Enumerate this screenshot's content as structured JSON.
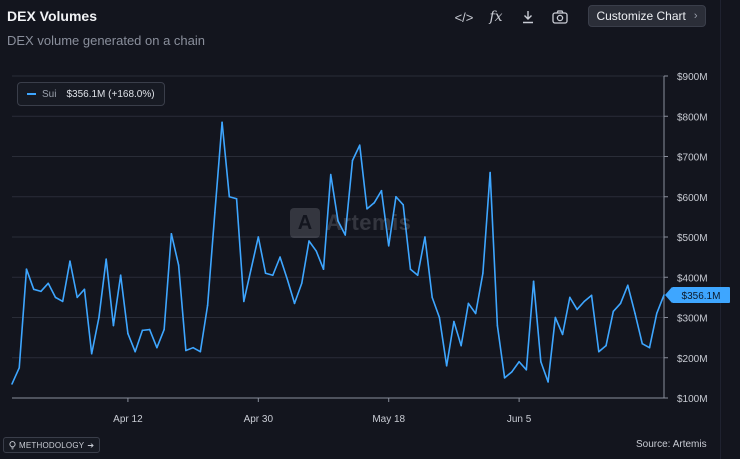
{
  "header": {
    "title": "DEX Volumes",
    "subtitle": "DEX volume generated on a chain",
    "customize_label": "Customize Chart",
    "customize_chevron": "›",
    "tools": [
      {
        "icon": "code-icon",
        "glyph": "</>"
      },
      {
        "icon": "fx-icon",
        "glyph": "fx"
      },
      {
        "icon": "download-icon",
        "glyph": "⤓"
      },
      {
        "icon": "camera-icon",
        "glyph": "📷"
      }
    ]
  },
  "legend": {
    "series": "Sui",
    "value": "$356.1M (+168.0%)"
  },
  "watermark": "Artemis",
  "footer": {
    "methodology": "METHODOLOGY",
    "methodology_arrow": "➔",
    "source": "Source: Artemis"
  },
  "colors": {
    "background": "#13151e",
    "series": "#3ea6ff",
    "grid": "#2a2d38",
    "axis_text": "#c9ccd4"
  },
  "chart_data": {
    "type": "line",
    "title": "DEX Volumes",
    "subtitle": "DEX volume generated on a chain",
    "xlabel": "",
    "ylabel": "",
    "y_unit": "USD",
    "ylim": [
      100,
      900
    ],
    "y_ticks": [
      100,
      200,
      300,
      400,
      500,
      600,
      700,
      800,
      900
    ],
    "y_tick_labels": [
      "$100M",
      "$200M",
      "$300M",
      "$400M",
      "$500M",
      "$600M",
      "$700M",
      "$800M",
      "$900M"
    ],
    "x_tick_labels": [
      {
        "label": "Apr 12",
        "index": 16
      },
      {
        "label": "Apr 30",
        "index": 34
      },
      {
        "label": "May 18",
        "index": 52
      },
      {
        "label": "Jun 5",
        "index": 70
      }
    ],
    "grid": "horizontal",
    "legend_position": "top-left",
    "current_value_label": "$356.1M",
    "series": [
      {
        "name": "Sui",
        "color": "#3ea6ff",
        "values": [
          135,
          175,
          420,
          370,
          365,
          385,
          350,
          340,
          440,
          350,
          370,
          210,
          300,
          445,
          280,
          405,
          260,
          215,
          268,
          270,
          225,
          270,
          508,
          430,
          218,
          225,
          215,
          330,
          560,
          785,
          600,
          595,
          340,
          420,
          500,
          410,
          405,
          450,
          395,
          335,
          385,
          490,
          465,
          420,
          655,
          540,
          505,
          690,
          728,
          570,
          585,
          615,
          478,
          600,
          580,
          420,
          405,
          500,
          350,
          300,
          180,
          290,
          230,
          335,
          310,
          410,
          660,
          280,
          150,
          165,
          190,
          170,
          390,
          190,
          140,
          300,
          258,
          350,
          320,
          340,
          355,
          215,
          230,
          315,
          335,
          380,
          310,
          235,
          225,
          310,
          356
        ]
      }
    ]
  }
}
